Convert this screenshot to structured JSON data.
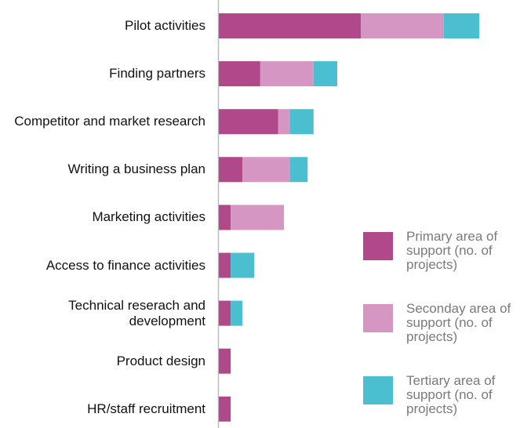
{
  "chart_data": {
    "type": "bar",
    "orientation": "horizontal",
    "stacked": true,
    "categories": [
      "Pilot activities",
      "Finding partners",
      "Competitor and market research",
      "Writing a business plan",
      "Marketing activities",
      "Access to finance activities",
      "Technical reserach and development",
      "Product design",
      "HR/staff recruitment"
    ],
    "series": [
      {
        "name": "Primary area of support (no. of projects)",
        "color": "#b0488a",
        "values": [
          12,
          3.5,
          5,
          2,
          1,
          1,
          1,
          1,
          1
        ]
      },
      {
        "name": "Seconday area of support (no. of projects)",
        "color": "#d596c4",
        "values": [
          7,
          4.5,
          1,
          4,
          4.5,
          0,
          0,
          0,
          0
        ]
      },
      {
        "name": "Tertiary area of support (no. of projects)",
        "color": "#4bbfd0",
        "values": [
          3,
          2,
          2,
          1.5,
          0,
          2,
          1,
          0,
          0
        ]
      }
    ],
    "legend": "right"
  }
}
